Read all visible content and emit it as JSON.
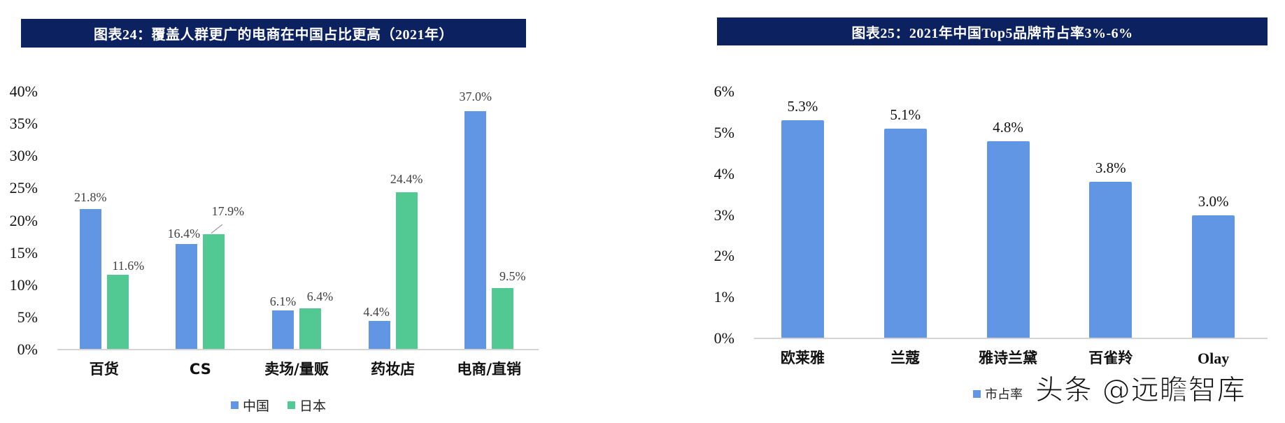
{
  "left_chart": {
    "title": "图表24：覆盖人群更广的电商在中国占比更高（2021年）",
    "y_ticks": [
      "40%",
      "35%",
      "30%",
      "25%",
      "20%",
      "15%",
      "10%",
      "5%",
      "0%"
    ],
    "categories": [
      "百货",
      "CS",
      "卖场/量贩",
      "药妆店",
      "电商/直销"
    ],
    "series": [
      {
        "name": "中国",
        "color": "#6096e3",
        "labels": [
          "21.8%",
          "16.4%",
          "6.1%",
          "4.4%",
          "37.0%"
        ]
      },
      {
        "name": "日本",
        "color": "#52c993",
        "labels": [
          "11.6%",
          "17.9%",
          "6.4%",
          "24.4%",
          "9.5%"
        ]
      }
    ],
    "legend": [
      "中国",
      "日本"
    ]
  },
  "right_chart": {
    "title": "图表25：2021年中国Top5品牌市占率3%-6%",
    "y_ticks": [
      "6%",
      "5%",
      "4%",
      "3%",
      "2%",
      "1%",
      "0%"
    ],
    "categories": [
      "欧莱雅",
      "兰蔻",
      "雅诗兰黛",
      "百雀羚",
      "Olay"
    ],
    "labels": [
      "5.3%",
      "5.1%",
      "4.8%",
      "3.8%",
      "3.0%"
    ],
    "legend": "市占率",
    "color": "#6096e3"
  },
  "watermark": "头条 @远瞻智库",
  "chart_data": [
    {
      "type": "bar",
      "title": "图表24：覆盖人群更广的电商在中国占比更高（2021年）",
      "categories": [
        "百货",
        "CS",
        "卖场/量贩",
        "药妆店",
        "电商/直销"
      ],
      "series": [
        {
          "name": "中国",
          "values": [
            21.8,
            16.4,
            6.1,
            4.4,
            37.0
          ]
        },
        {
          "name": "日本",
          "values": [
            11.6,
            17.9,
            6.4,
            24.4,
            9.5
          ]
        }
      ],
      "xlabel": "",
      "ylabel": "",
      "ylim": [
        0,
        40
      ],
      "y_ticks": [
        0,
        5,
        10,
        15,
        20,
        25,
        30,
        35,
        40
      ],
      "y_format": "percent",
      "grid": false,
      "legend_position": "bottom",
      "colors": {
        "中国": "#6096e3",
        "日本": "#52c993"
      }
    },
    {
      "type": "bar",
      "title": "图表25：2021年中国Top5品牌市占率3%-6%",
      "categories": [
        "欧莱雅",
        "兰蔻",
        "雅诗兰黛",
        "百雀羚",
        "Olay"
      ],
      "series": [
        {
          "name": "市占率",
          "values": [
            5.3,
            5.1,
            4.8,
            3.8,
            3.0
          ]
        }
      ],
      "xlabel": "",
      "ylabel": "",
      "ylim": [
        0,
        6
      ],
      "y_ticks": [
        0,
        1,
        2,
        3,
        4,
        5,
        6
      ],
      "y_format": "percent",
      "grid": false,
      "legend_position": "bottom",
      "colors": {
        "市占率": "#6096e3"
      }
    }
  ]
}
